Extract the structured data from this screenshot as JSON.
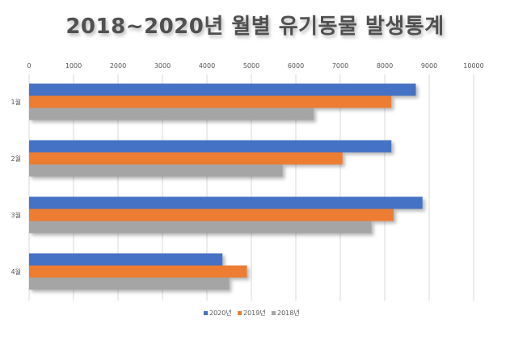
{
  "chart_data": {
    "type": "bar",
    "orientation": "horizontal",
    "title": "2018~2020년 월별 유기동물 발생통계",
    "categories": [
      "1월",
      "2월",
      "3월",
      "4월"
    ],
    "series": [
      {
        "name": "2020년",
        "color": "#4472C4",
        "values": [
          8700,
          8150,
          8850,
          4350
        ]
      },
      {
        "name": "2019년",
        "color": "#ED7D31",
        "values": [
          8150,
          7050,
          8200,
          4900
        ]
      },
      {
        "name": "2018년",
        "color": "#A5A5A5",
        "values": [
          6400,
          5700,
          7700,
          4500
        ]
      }
    ],
    "xlim": [
      0,
      10000
    ],
    "xticks": [
      "0",
      "1000",
      "2000",
      "3000",
      "4000",
      "5000",
      "6000",
      "7000",
      "8000",
      "9000",
      "10000"
    ],
    "grid": true,
    "legend_position": "bottom"
  }
}
